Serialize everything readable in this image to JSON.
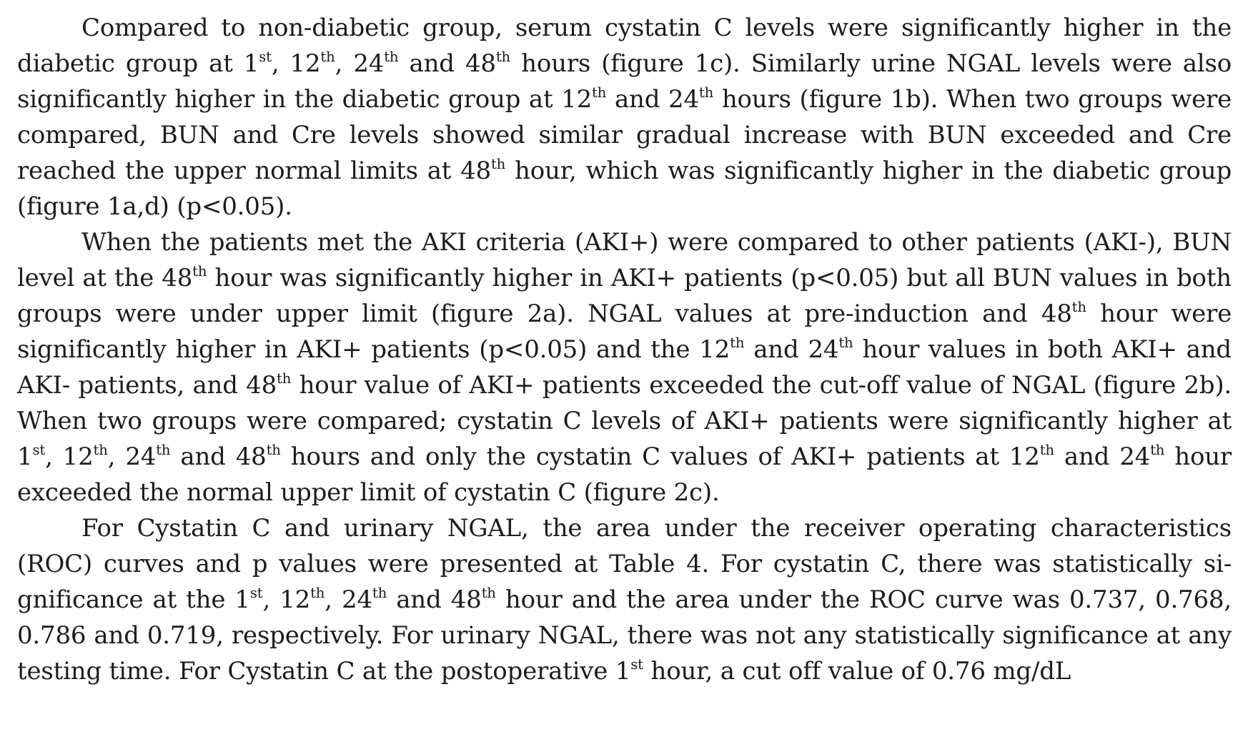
{
  "paragraphs": [
    [
      {
        "t": "Compared to non-diabetic group, serum cystatin C levels were significantly higher in the diabetic group at 1"
      },
      {
        "sup": "st"
      },
      {
        "t": ", 12"
      },
      {
        "sup": "th"
      },
      {
        "t": ", 24"
      },
      {
        "sup": "th"
      },
      {
        "t": " and 48"
      },
      {
        "sup": "th"
      },
      {
        "t": " hours (figure 1c). Similarly urine NGAL levels were also significantly higher in the diabetic group at 12"
      },
      {
        "sup": "th"
      },
      {
        "t": " and 24"
      },
      {
        "sup": "th"
      },
      {
        "t": " hours (figure 1b). When two groups were compared, BUN and Cre levels showed similar gradual increase with BUN exceeded and Cre reached the upper normal limits at 48"
      },
      {
        "sup": "th"
      },
      {
        "t": " hour, which was significantly higher in the diabetic group (figure 1a,d) (p<0.05)."
      }
    ],
    [
      {
        "t": "When the patients met the AKI criteria (AKI+) were compared to other patients (AKI-), BUN level at the 48"
      },
      {
        "sup": "th"
      },
      {
        "t": " hour was significantly higher in AKI+ patients (p<0.05) but all BUN values in both groups were under upper limit (figure 2a). NGAL values at pre-induction and 48"
      },
      {
        "sup": "th"
      },
      {
        "t": " hour were significantly higher in AKI+ patients (p<0.05) and the 12"
      },
      {
        "sup": "th"
      },
      {
        "t": " and 24"
      },
      {
        "sup": "th"
      },
      {
        "t": " hour values in both AKI+ and AKI- patients, and 48"
      },
      {
        "sup": "th"
      },
      {
        "t": " hour value of AKI+ patients exceeded the cut-off value of NGAL (figure 2b). When two groups were compared; cystatin C levels of AKI+ patients were significantly higher at 1"
      },
      {
        "sup": "st"
      },
      {
        "t": ", 12"
      },
      {
        "sup": "th"
      },
      {
        "t": ", 24"
      },
      {
        "sup": "th"
      },
      {
        "t": " and 48"
      },
      {
        "sup": "th"
      },
      {
        "t": " hours and only the cystatin C values of AKI+ patients at 12"
      },
      {
        "sup": "th"
      },
      {
        "t": " and 24"
      },
      {
        "sup": "th"
      },
      {
        "t": " hour exceeded the normal upper limit of cystatin C (figure 2c)."
      }
    ],
    [
      {
        "t": "For Cystatin C and urinary NGAL, the area under the receiver operating characteristics (ROC) curves and p values were presented at Table 4. For cystatin C, there was statistically si-gnificance at the 1"
      },
      {
        "sup": "st"
      },
      {
        "t": ", 12"
      },
      {
        "sup": "th"
      },
      {
        "t": ", 24"
      },
      {
        "sup": "th"
      },
      {
        "t": " and 48"
      },
      {
        "sup": "th"
      },
      {
        "t": " hour and the area under the ROC curve was 0.737, 0.768, 0.786 and 0.719, respectively. For urinary NGAL, there was not any statistically significance at any testing time. For Cystatin C at the postoperative 1"
      },
      {
        "sup": "st"
      },
      {
        "t": " hour, a cut off value of 0.76 mg/dL"
      }
    ]
  ]
}
